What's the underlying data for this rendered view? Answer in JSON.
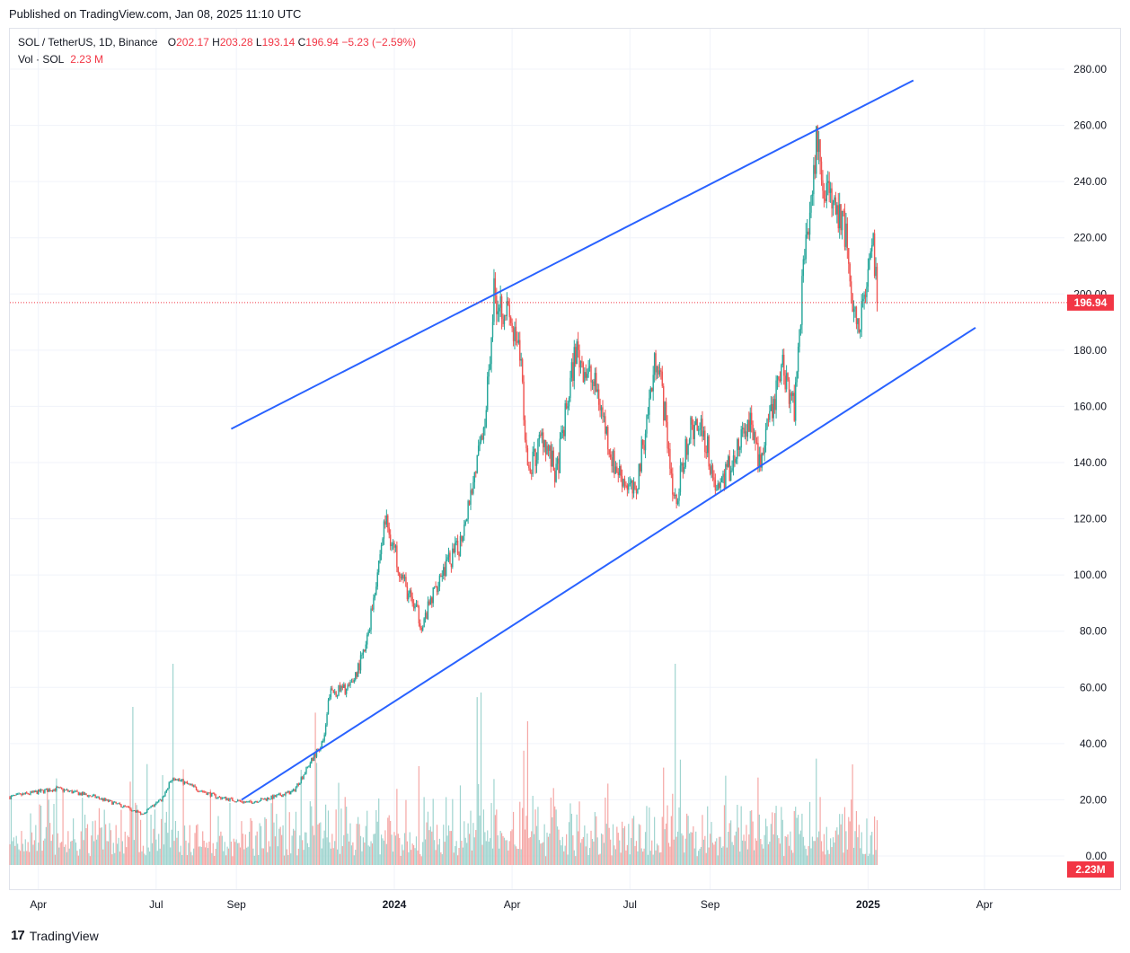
{
  "header": {
    "published": "Published on TradingView.com, Jan 08, 2025 11:10 UTC"
  },
  "legend": {
    "symbol": "SOL / TetherUS, 1D, Binance",
    "open_label": "O",
    "open": "202.17",
    "high_label": "H",
    "high": "203.28",
    "low_label": "L",
    "low": "193.14",
    "close_label": "C",
    "close": "196.94",
    "change": "−5.23 (−2.59%)",
    "vol_label": "Vol · SOL",
    "vol_value": "2.23 M"
  },
  "footer": {
    "brand": "TradingView",
    "logo_glyph": "17"
  },
  "colors": {
    "up": "#26a69a",
    "down": "#ef5350",
    "up_vol": "#9fd4cf",
    "down_vol": "#f5a7a5",
    "trendline": "#2962ff",
    "price_tag": "#f23645",
    "grid": "#f0f3fa"
  },
  "chart_data": {
    "type": "candlestick",
    "symbol": "SOL / TetherUS",
    "interval": "1D",
    "exchange": "Binance",
    "last_price": "196.94",
    "last_volume": "2.23M",
    "ylim": [
      0,
      290
    ],
    "y_ticks": [
      "280.00",
      "260.00",
      "240.00",
      "220.00",
      "200.00",
      "180.00",
      "160.00",
      "140.00",
      "120.00",
      "100.00",
      "80.00",
      "60.00",
      "40.00",
      "20.00",
      "0.00"
    ],
    "x_ticks": [
      {
        "label": "Apr",
        "date": "2023-04-01",
        "bold": false
      },
      {
        "label": "Jul",
        "date": "2023-07-01",
        "bold": false
      },
      {
        "label": "Sep",
        "date": "2023-09-01",
        "bold": false
      },
      {
        "label": "2024",
        "date": "2024-01-01",
        "bold": true
      },
      {
        "label": "Apr",
        "date": "2024-04-01",
        "bold": false
      },
      {
        "label": "Jul",
        "date": "2024-07-01",
        "bold": false
      },
      {
        "label": "Sep",
        "date": "2024-09-01",
        "bold": false
      },
      {
        "label": "2025",
        "date": "2025-01-01",
        "bold": true
      },
      {
        "label": "Apr",
        "date": "2025-04-01",
        "bold": false
      }
    ],
    "price_path": [
      [
        "2023-03-10",
        21
      ],
      [
        "2023-04-15",
        24
      ],
      [
        "2023-05-15",
        21
      ],
      [
        "2023-06-10",
        17
      ],
      [
        "2023-06-20",
        15
      ],
      [
        "2023-07-05",
        20
      ],
      [
        "2023-07-14",
        28
      ],
      [
        "2023-08-01",
        24
      ],
      [
        "2023-08-17",
        21
      ],
      [
        "2023-09-10",
        19
      ],
      [
        "2023-09-30",
        21
      ],
      [
        "2023-10-15",
        23
      ],
      [
        "2023-10-24",
        30
      ],
      [
        "2023-11-08",
        42
      ],
      [
        "2023-11-12",
        58
      ],
      [
        "2023-11-28",
        60
      ],
      [
        "2023-12-10",
        74
      ],
      [
        "2023-12-25",
        120
      ],
      [
        "2024-01-10",
        95
      ],
      [
        "2024-01-23",
        82
      ],
      [
        "2024-02-05",
        100
      ],
      [
        "2024-02-20",
        110
      ],
      [
        "2024-02-29",
        130
      ],
      [
        "2024-03-10",
        150
      ],
      [
        "2024-03-18",
        200
      ],
      [
        "2024-03-27",
        195
      ],
      [
        "2024-04-08",
        175
      ],
      [
        "2024-04-13",
        135
      ],
      [
        "2024-04-25",
        150
      ],
      [
        "2024-05-05",
        135
      ],
      [
        "2024-05-20",
        180
      ],
      [
        "2024-06-06",
        165
      ],
      [
        "2024-06-18",
        140
      ],
      [
        "2024-07-05",
        128
      ],
      [
        "2024-07-22",
        180
      ],
      [
        "2024-08-05",
        125
      ],
      [
        "2024-08-15",
        150
      ],
      [
        "2024-08-25",
        155
      ],
      [
        "2024-09-06",
        130
      ],
      [
        "2024-09-18",
        140
      ],
      [
        "2024-10-01",
        155
      ],
      [
        "2024-10-10",
        140
      ],
      [
        "2024-10-27",
        175
      ],
      [
        "2024-11-05",
        160
      ],
      [
        "2024-11-12",
        210
      ],
      [
        "2024-11-22",
        255
      ],
      [
        "2024-12-01",
        235
      ],
      [
        "2024-12-10",
        225
      ],
      [
        "2024-12-15",
        220
      ],
      [
        "2024-12-20",
        190
      ],
      [
        "2024-12-30",
        195
      ],
      [
        "2025-01-05",
        218
      ],
      [
        "2025-01-08",
        196.94
      ]
    ],
    "volume_spikes": [
      [
        "2023-06-13",
        40
      ],
      [
        "2023-07-14",
        55
      ],
      [
        "2023-11-01",
        38
      ],
      [
        "2024-03-05",
        42
      ],
      [
        "2024-03-08",
        45
      ],
      [
        "2024-04-13",
        35
      ],
      [
        "2024-08-05",
        65
      ],
      [
        "2024-11-22",
        22
      ],
      [
        "2024-12-20",
        20
      ]
    ],
    "trendlines": [
      {
        "name": "upper",
        "start": [
          "2023-08-28",
          152
        ],
        "end": [
          "2025-02-05",
          276
        ]
      },
      {
        "name": "lower",
        "start": [
          "2023-09-05",
          20
        ],
        "end": [
          "2025-03-25",
          188
        ]
      }
    ],
    "last_price_line": {
      "value": 196.94,
      "style": "dotted"
    }
  }
}
